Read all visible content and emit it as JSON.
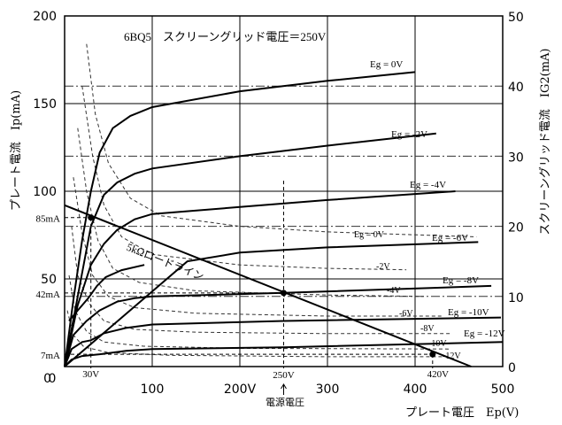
{
  "chart_data": {
    "type": "line",
    "title": "6BQ5　スクリーングリッド電圧＝250V",
    "xlabel": "プレート電圧　Ep(V)",
    "ylabel": "プレート電流　Ip(mA)",
    "y2label": "スクリーングリッド電流　IG2(mA)",
    "xlim": [
      0,
      500
    ],
    "ylim": [
      0,
      200
    ],
    "y2lim": [
      0,
      50
    ],
    "x_ticks": [
      "0",
      "100",
      "200V",
      "300",
      "400",
      "500"
    ],
    "y_ticks": [
      "0",
      "50",
      "100",
      "150",
      "200"
    ],
    "y2_ticks": [
      "0",
      "10",
      "20",
      "30",
      "40",
      "50"
    ],
    "plate_series": [
      {
        "name": "Eg = 0V",
        "points": [
          [
            0,
            0
          ],
          [
            10,
            38
          ],
          [
            20,
            72
          ],
          [
            30,
            100
          ],
          [
            40,
            122
          ],
          [
            55,
            136
          ],
          [
            75,
            143
          ],
          [
            100,
            148
          ],
          [
            200,
            157
          ],
          [
            300,
            163
          ],
          [
            400,
            168
          ]
        ]
      },
      {
        "name": "Eg = -2V",
        "points": [
          [
            0,
            0
          ],
          [
            15,
            40
          ],
          [
            30,
            80
          ],
          [
            45,
            98
          ],
          [
            60,
            105
          ],
          [
            80,
            110
          ],
          [
            100,
            113
          ],
          [
            200,
            120
          ],
          [
            300,
            126
          ],
          [
            424,
            133
          ]
        ]
      },
      {
        "name": "Eg = -4V",
        "points": [
          [
            0,
            0
          ],
          [
            15,
            35
          ],
          [
            30,
            58
          ],
          [
            45,
            70
          ],
          [
            60,
            78
          ],
          [
            80,
            84
          ],
          [
            100,
            87
          ],
          [
            200,
            91
          ],
          [
            300,
            95
          ],
          [
            446,
            100
          ]
        ]
      },
      {
        "name": "Eg = -6V",
        "points": [
          [
            0,
            0
          ],
          [
            140,
            60
          ],
          [
            200,
            65
          ],
          [
            300,
            68
          ],
          [
            472,
            71
          ]
        ]
      },
      {
        "name": "Eg = -8V",
        "points": [
          [
            0,
            0
          ],
          [
            10,
            18
          ],
          [
            25,
            26
          ],
          [
            40,
            32
          ],
          [
            60,
            37
          ],
          [
            80,
            39
          ],
          [
            100,
            40
          ],
          [
            250,
            42
          ],
          [
            487,
            46
          ]
        ]
      },
      {
        "name": "Eg = -10V",
        "points": [
          [
            0,
            0
          ],
          [
            8,
            10
          ],
          [
            20,
            14
          ],
          [
            30,
            15
          ],
          [
            45,
            19
          ],
          [
            70,
            22
          ],
          [
            100,
            24
          ],
          [
            250,
            26
          ],
          [
            498,
            28
          ]
        ]
      },
      {
        "name": "Eg = -12V",
        "points": [
          [
            0,
            0
          ],
          [
            8,
            4
          ],
          [
            20,
            6
          ],
          [
            40,
            7
          ],
          [
            70,
            9
          ],
          [
            100,
            10
          ],
          [
            250,
            11
          ],
          [
            500,
            14
          ]
        ]
      },
      {
        "name": "knee",
        "points": [
          [
            5,
            26
          ],
          [
            15,
            32
          ],
          [
            27,
            39
          ],
          [
            37,
            46
          ],
          [
            47,
            51
          ],
          [
            65,
            55
          ],
          [
            91,
            58
          ]
        ]
      }
    ],
    "screen_series": [
      {
        "name": "Eg = 0V",
        "points": [
          [
            25,
            46
          ],
          [
            35,
            36
          ],
          [
            50,
            29
          ],
          [
            75,
            24
          ],
          [
            110,
            21.5
          ],
          [
            200,
            20
          ],
          [
            300,
            19.2
          ],
          [
            470,
            18.5
          ]
        ]
      },
      {
        "name": "-2V",
        "points": [
          [
            20,
            40
          ],
          [
            32,
            30
          ],
          [
            45,
            23
          ],
          [
            65,
            18.5
          ],
          [
            100,
            16
          ],
          [
            200,
            14.5
          ],
          [
            300,
            14
          ],
          [
            390,
            13.8
          ]
        ]
      },
      {
        "name": "-4V",
        "points": [
          [
            15,
            34
          ],
          [
            25,
            25
          ],
          [
            38,
            18
          ],
          [
            55,
            14
          ],
          [
            85,
            12
          ],
          [
            150,
            10.8
          ],
          [
            300,
            10.2
          ],
          [
            410,
            10
          ]
        ]
      },
      {
        "name": "-6V",
        "points": [
          [
            10,
            27
          ],
          [
            20,
            19
          ],
          [
            32,
            13
          ],
          [
            50,
            10
          ],
          [
            80,
            8.4
          ],
          [
            150,
            7.6
          ],
          [
            300,
            7.2
          ],
          [
            430,
            7.2
          ]
        ]
      },
      {
        "name": "-8V",
        "points": [
          [
            8,
            20
          ],
          [
            15,
            13
          ],
          [
            28,
            9
          ],
          [
            45,
            6.5
          ],
          [
            80,
            5.3
          ],
          [
            150,
            4.9
          ],
          [
            300,
            4.7
          ],
          [
            440,
            4.7
          ]
        ]
      },
      {
        "name": "-10V",
        "points": [
          [
            5,
            13
          ],
          [
            12,
            8
          ],
          [
            25,
            5
          ],
          [
            45,
            3.5
          ],
          [
            90,
            2.9
          ],
          [
            200,
            2.6
          ],
          [
            440,
            2.5
          ]
        ]
      },
      {
        "name": "-12V",
        "points": [
          [
            3,
            8
          ],
          [
            10,
            4.5
          ],
          [
            22,
            2.8
          ],
          [
            50,
            2
          ],
          [
            120,
            1.6
          ],
          [
            300,
            1.4
          ],
          [
            440,
            1.4
          ]
        ]
      }
    ],
    "load_line": {
      "name": "5kΩロードライン",
      "points": [
        [
          0,
          92
        ],
        [
          464,
          0
        ]
      ]
    },
    "operating_points": [
      {
        "v": 30,
        "i": 85,
        "v_label": "30V",
        "i_label": "85mA"
      },
      {
        "v": 250,
        "i": 42,
        "v_label": "250V",
        "i_label": "42mA"
      },
      {
        "v": 420,
        "i": 7,
        "v_label": "420V",
        "i_label": "7mA"
      }
    ],
    "supply_label": "電源電圧",
    "grid": true
  }
}
